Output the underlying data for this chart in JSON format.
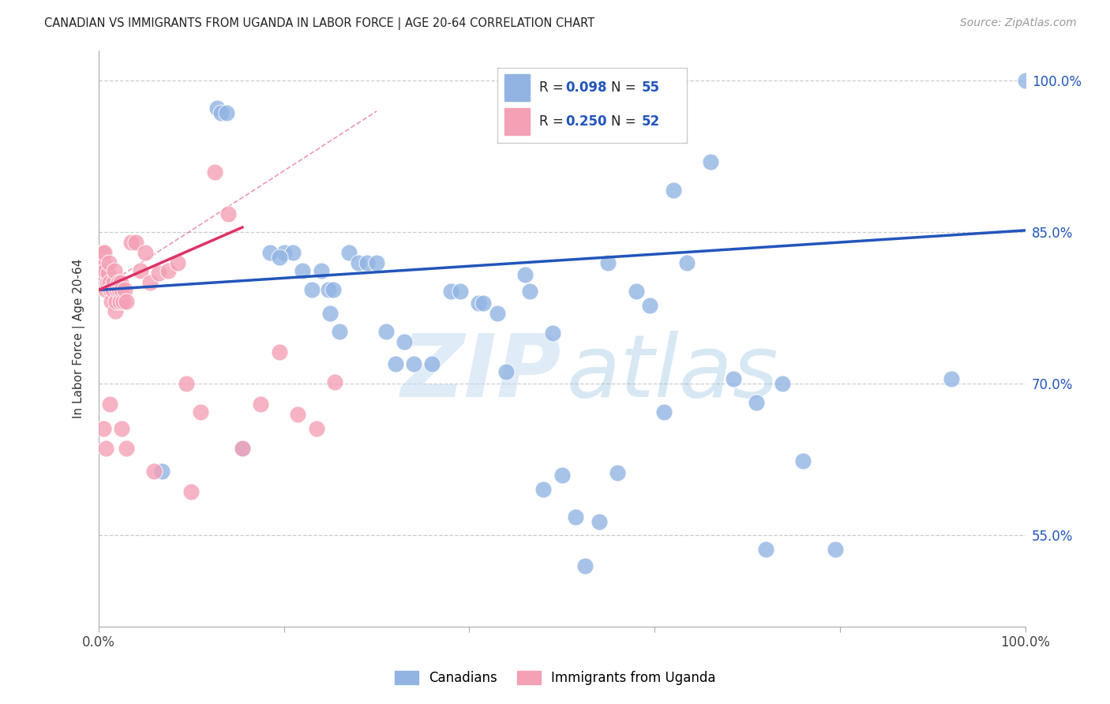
{
  "title": "CANADIAN VS IMMIGRANTS FROM UGANDA IN LABOR FORCE | AGE 20-64 CORRELATION CHART",
  "source": "Source: ZipAtlas.com",
  "ylabel": "In Labor Force | Age 20-64",
  "xlim": [
    0.0,
    1.0
  ],
  "ylim": [
    0.46,
    1.03
  ],
  "ytick_vals": [
    0.55,
    0.7,
    0.85,
    1.0
  ],
  "ytick_labels": [
    "55.0%",
    "70.0%",
    "85.0%",
    "100.0%"
  ],
  "xtick_vals": [
    0.0,
    0.2,
    0.4,
    0.6,
    0.8,
    1.0
  ],
  "xtick_labels": [
    "0.0%",
    "",
    "",
    "",
    "",
    "100.0%"
  ],
  "canadian_color": "#92b4e3",
  "uganda_color": "#f4a0b5",
  "trend_blue": "#2255bb",
  "trend_red": "#dd3366",
  "axis_label_color": "#2255bb",
  "canadian_R": 0.098,
  "canadian_N": 55,
  "uganda_R": 0.25,
  "uganda_N": 52,
  "blue_line_x0": 0.0,
  "blue_line_y0": 0.793,
  "blue_line_x1": 1.0,
  "blue_line_y1": 0.852,
  "red_line_x0": 0.0,
  "red_line_y0": 0.793,
  "red_line_x1": 0.155,
  "red_line_y1": 0.855,
  "dashed_line_x0": 0.0,
  "dashed_line_y0": 0.793,
  "dashed_line_x1": 0.3,
  "dashed_line_y1": 0.97,
  "canadian_x": [
    0.068,
    0.128,
    0.132,
    0.138,
    0.155,
    0.2,
    0.21,
    0.22,
    0.23,
    0.24,
    0.25,
    0.26,
    0.27,
    0.28,
    0.29,
    0.3,
    0.31,
    0.32,
    0.33,
    0.34,
    0.36,
    0.38,
    0.39,
    0.41,
    0.43,
    0.44,
    0.46,
    0.465,
    0.48,
    0.49,
    0.5,
    0.515,
    0.525,
    0.54,
    0.55,
    0.56,
    0.58,
    0.595,
    0.61,
    0.62,
    0.635,
    0.66,
    0.685,
    0.71,
    0.72,
    0.738,
    0.76,
    0.795,
    0.92,
    1.0,
    0.185,
    0.195,
    0.248,
    0.253,
    0.415
  ],
  "canadian_y": [
    0.614,
    0.973,
    0.968,
    0.968,
    0.636,
    0.83,
    0.83,
    0.812,
    0.793,
    0.812,
    0.77,
    0.752,
    0.83,
    0.82,
    0.82,
    0.82,
    0.752,
    0.72,
    0.742,
    0.72,
    0.72,
    0.792,
    0.792,
    0.78,
    0.77,
    0.712,
    0.808,
    0.792,
    0.596,
    0.75,
    0.61,
    0.568,
    0.52,
    0.564,
    0.82,
    0.612,
    0.792,
    0.778,
    0.672,
    0.892,
    0.82,
    0.92,
    0.705,
    0.682,
    0.536,
    0.7,
    0.624,
    0.536,
    0.705,
    1.0,
    0.83,
    0.825,
    0.793,
    0.793,
    0.78
  ],
  "uganda_x": [
    0.002,
    0.003,
    0.004,
    0.005,
    0.006,
    0.007,
    0.008,
    0.009,
    0.01,
    0.011,
    0.012,
    0.013,
    0.014,
    0.015,
    0.016,
    0.017,
    0.018,
    0.019,
    0.02,
    0.021,
    0.022,
    0.023,
    0.024,
    0.025,
    0.026,
    0.028,
    0.03,
    0.035,
    0.04,
    0.045,
    0.05,
    0.055,
    0.065,
    0.075,
    0.085,
    0.095,
    0.11,
    0.125,
    0.14,
    0.155,
    0.175,
    0.195,
    0.215,
    0.235,
    0.255,
    0.005,
    0.008,
    0.012,
    0.025,
    0.03,
    0.06,
    0.1
  ],
  "uganda_y": [
    0.81,
    0.82,
    0.83,
    0.82,
    0.83,
    0.812,
    0.793,
    0.8,
    0.81,
    0.82,
    0.8,
    0.793,
    0.782,
    0.793,
    0.8,
    0.812,
    0.772,
    0.782,
    0.793,
    0.8,
    0.793,
    0.782,
    0.8,
    0.793,
    0.782,
    0.793,
    0.782,
    0.84,
    0.84,
    0.812,
    0.83,
    0.8,
    0.81,
    0.812,
    0.82,
    0.7,
    0.672,
    0.91,
    0.868,
    0.636,
    0.68,
    0.732,
    0.67,
    0.656,
    0.702,
    0.656,
    0.636,
    0.68,
    0.656,
    0.636,
    0.614,
    0.593
  ]
}
